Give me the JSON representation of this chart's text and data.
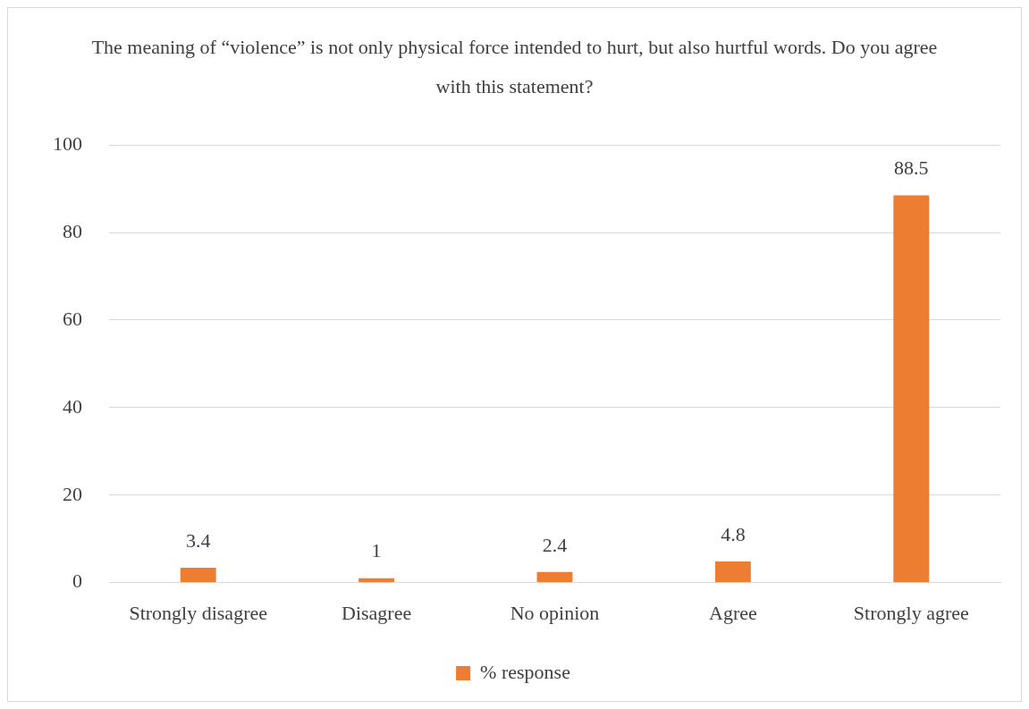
{
  "chart_data": {
    "type": "bar",
    "title": "The meaning of “violence” is not only physical force intended to hurt, but also hurtful words. Do you agree with this statement?",
    "categories": [
      "Strongly disagree",
      "Disagree",
      "No opinion",
      "Agree",
      "Strongly agree"
    ],
    "series": [
      {
        "name": "% response",
        "color": "#ed7d31",
        "values": [
          3.4,
          1,
          2.4,
          4.8,
          88.5
        ]
      }
    ],
    "ylim": [
      0,
      100
    ],
    "yticks": [
      0,
      20,
      40,
      60,
      80,
      100
    ],
    "grid": "y",
    "legend": "bottom",
    "data_labels": true
  }
}
